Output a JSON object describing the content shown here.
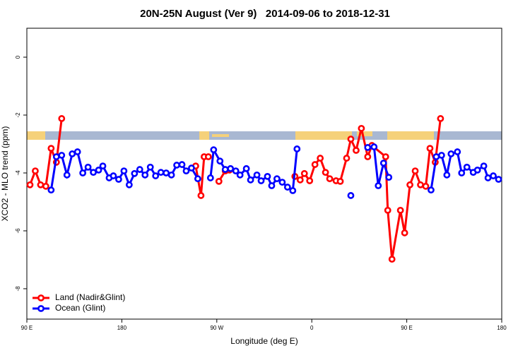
{
  "chart_data": {
    "type": "line",
    "title": "20N-25N August (Ver 9)   2014-09-06 to 2018-12-31",
    "xlabel": "Longitude (deg E)",
    "ylabel": "XCO2 - MLO trend (ppm)",
    "xlim": [
      90,
      540
    ],
    "ylim": [
      -9.05,
      1.0
    ],
    "xticks": [
      {
        "value": 90,
        "label": "90 E"
      },
      180,
      {
        "value": 270,
        "label": "90 W"
      },
      {
        "value": 360,
        "label": "0"
      },
      {
        "value": 450,
        "label": "90 E"
      },
      {
        "value": 540,
        "label": "180"
      }
    ],
    "yticks": [
      0,
      -2,
      -4,
      -6,
      -8
    ],
    "legend": "bottom-left",
    "series": [
      {
        "name": "Land (Nadir&Glint)",
        "color": "#ff0000",
        "x": [
          93,
          98,
          103,
          108,
          113,
          118,
          123,
          128,
          250,
          255,
          258,
          262,
          267,
          272,
          278,
          282,
          300,
          344,
          349,
          353,
          358,
          363,
          368,
          373,
          377,
          383,
          387,
          393,
          397,
          402,
          407,
          413,
          417,
          430,
          432,
          436,
          444,
          448,
          453,
          458,
          463,
          468,
          472,
          477,
          482
        ],
        "values": [
          -4.41,
          -3.93,
          -4.41,
          -4.46,
          -3.15,
          -3.63,
          -2.12,
          null,
          -3.76,
          -4.78,
          -3.44,
          -3.44,
          null,
          -4.29,
          -3.93,
          -3.9,
          null,
          -4.12,
          -4.24,
          -4.02,
          -4.27,
          -3.71,
          -3.49,
          -3.98,
          -4.2,
          -4.27,
          -4.29,
          -3.49,
          -2.83,
          -3.22,
          -2.46,
          -3.44,
          -3.05,
          -3.44,
          -5.29,
          -6.98,
          -5.29,
          -6.07,
          -4.41,
          -3.93,
          -4.41,
          -4.46,
          -3.15,
          -3.63,
          -2.12
        ]
      },
      {
        "name": "Ocean (Glint)",
        "color": "#0000ff",
        "x": [
          113,
          118,
          123,
          128,
          133,
          138,
          143,
          148,
          153,
          158,
          162,
          168,
          172,
          177,
          182,
          187,
          192,
          197,
          202,
          207,
          212,
          217,
          222,
          227,
          232,
          237,
          241,
          246,
          252,
          255,
          264,
          267,
          273,
          278,
          283,
          288,
          292,
          298,
          302,
          308,
          312,
          318,
          322,
          327,
          332,
          337,
          342,
          346,
          360,
          397,
          410,
          413,
          419,
          423,
          428,
          433,
          460,
          473,
          478,
          483,
          488,
          492,
          498,
          502,
          507,
          513,
          517,
          523,
          527,
          532,
          537
        ],
        "values": [
          -4.59,
          -3.44,
          -3.39,
          -4.07,
          -3.34,
          -3.27,
          -4.0,
          -3.8,
          -3.98,
          -3.9,
          -3.76,
          -4.17,
          -4.1,
          -4.22,
          -3.93,
          -4.41,
          -4.02,
          -3.88,
          -4.07,
          -3.8,
          -4.1,
          -3.98,
          -4.0,
          -4.07,
          -3.73,
          -3.71,
          -3.93,
          -3.83,
          -4.2,
          null,
          -4.17,
          -3.2,
          -3.59,
          -3.88,
          -3.85,
          -3.93,
          -4.07,
          -3.85,
          -4.24,
          -4.07,
          -4.27,
          -4.12,
          -4.44,
          -4.2,
          -4.32,
          -4.49,
          -4.61,
          -3.17,
          null,
          -4.78,
          null,
          -3.12,
          -3.1,
          -4.44,
          -3.66,
          -4.15,
          null,
          -4.59,
          -3.44,
          -3.39,
          -4.07,
          -3.34,
          -3.27,
          -4.0,
          -3.8,
          -3.98,
          -3.9,
          -3.76,
          -4.17,
          -4.1,
          -4.22
        ]
      }
    ]
  }
}
